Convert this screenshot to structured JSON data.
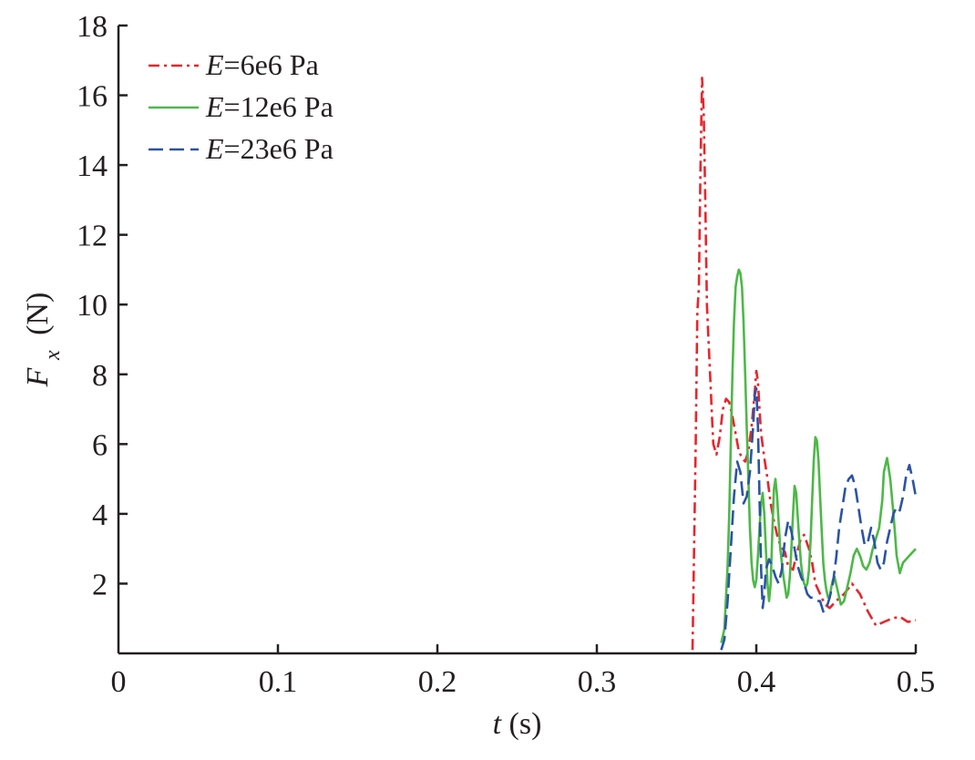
{
  "chart_data": {
    "type": "line",
    "title": "",
    "xlabel": {
      "var": "t",
      "unit": "(s)"
    },
    "ylabel": {
      "var": "F",
      "sub": "x",
      "unit": "(N)"
    },
    "xlim": [
      0,
      0.5
    ],
    "ylim": [
      0,
      18
    ],
    "x_ticks": [
      0,
      0.1,
      0.2,
      0.3,
      0.4,
      0.5
    ],
    "x_tick_labels": [
      "0",
      "0.1",
      "0.2",
      "0.3",
      "0.4",
      "0.5"
    ],
    "y_ticks": [
      2,
      4,
      6,
      8,
      10,
      12,
      14,
      16,
      18
    ],
    "y_tick_labels": [
      "2",
      "4",
      "6",
      "8",
      "10",
      "12",
      "14",
      "16",
      "18"
    ],
    "grid": false,
    "legend_position": "top-left",
    "series": [
      {
        "name": "E=6e6 Pa",
        "legend_var": "E",
        "legend_rest": "=6e6 Pa",
        "color": "#e8252b",
        "dash": "12,5,3,5",
        "x": [
          0.36,
          0.362,
          0.363,
          0.364,
          0.365,
          0.366,
          0.367,
          0.368,
          0.369,
          0.37,
          0.371,
          0.372,
          0.373,
          0.375,
          0.377,
          0.379,
          0.381,
          0.383,
          0.385,
          0.387,
          0.389,
          0.391,
          0.393,
          0.395,
          0.397,
          0.399,
          0.4,
          0.401,
          0.402,
          0.403,
          0.405,
          0.407,
          0.409,
          0.411,
          0.413,
          0.415,
          0.418,
          0.42,
          0.423,
          0.425,
          0.428,
          0.43,
          0.433,
          0.435,
          0.437,
          0.44,
          0.443,
          0.446,
          0.45,
          0.455,
          0.46,
          0.465,
          0.47,
          0.475,
          0.48,
          0.485,
          0.49,
          0.495,
          0.5
        ],
        "y": [
          0.1,
          6.0,
          9.8,
          10.5,
          14.0,
          16.5,
          15.5,
          13.0,
          10.0,
          9.0,
          8.0,
          7.0,
          6.0,
          5.7,
          6.2,
          7.0,
          7.3,
          7.2,
          6.8,
          6.3,
          5.8,
          5.6,
          5.5,
          5.8,
          6.5,
          7.5,
          8.1,
          7.8,
          7.0,
          6.3,
          5.6,
          5.0,
          4.3,
          3.8,
          3.4,
          3.1,
          2.9,
          2.5,
          2.4,
          2.8,
          3.3,
          3.4,
          3.0,
          2.6,
          2.0,
          1.7,
          1.4,
          1.3,
          1.5,
          1.7,
          2.0,
          1.7,
          1.2,
          0.8,
          0.9,
          1.0,
          1.05,
          0.9,
          0.95
        ]
      },
      {
        "name": "E=12e6 Pa",
        "legend_var": "E",
        "legend_rest": "=12e6 Pa",
        "color": "#4db848",
        "dash": "",
        "x": [
          0.378,
          0.38,
          0.382,
          0.383,
          0.384,
          0.385,
          0.386,
          0.387,
          0.388,
          0.389,
          0.39,
          0.391,
          0.392,
          0.393,
          0.394,
          0.395,
          0.396,
          0.397,
          0.398,
          0.399,
          0.4,
          0.401,
          0.402,
          0.403,
          0.404,
          0.405,
          0.406,
          0.407,
          0.408,
          0.409,
          0.41,
          0.411,
          0.412,
          0.413,
          0.415,
          0.417,
          0.419,
          0.42,
          0.421,
          0.422,
          0.423,
          0.424,
          0.425,
          0.426,
          0.427,
          0.428,
          0.429,
          0.43,
          0.431,
          0.432,
          0.433,
          0.434,
          0.435,
          0.436,
          0.437,
          0.438,
          0.439,
          0.44,
          0.441,
          0.442,
          0.443,
          0.444,
          0.445,
          0.446,
          0.447,
          0.448,
          0.449,
          0.45,
          0.451,
          0.452,
          0.453,
          0.455,
          0.457,
          0.459,
          0.461,
          0.463,
          0.465,
          0.467,
          0.469,
          0.471,
          0.473,
          0.475,
          0.477,
          0.479,
          0.48,
          0.482,
          0.484,
          0.486,
          0.487,
          0.488,
          0.49,
          0.492,
          0.494,
          0.496,
          0.498,
          0.5
        ],
        "y": [
          0.3,
          0.7,
          2.5,
          4.0,
          6.0,
          8.0,
          9.5,
          10.5,
          10.8,
          11.0,
          10.9,
          10.5,
          9.5,
          8.0,
          6.5,
          5.0,
          3.6,
          2.6,
          2.1,
          1.9,
          2.1,
          2.8,
          3.6,
          4.3,
          4.6,
          4.0,
          3.0,
          2.0,
          1.5,
          2.0,
          3.4,
          4.7,
          5.0,
          4.5,
          3.0,
          2.2,
          1.6,
          1.7,
          2.2,
          3.0,
          4.0,
          4.8,
          4.6,
          3.9,
          3.2,
          2.6,
          2.2,
          2.0,
          1.9,
          2.0,
          2.4,
          3.2,
          4.4,
          5.5,
          6.2,
          6.1,
          5.5,
          4.5,
          3.5,
          2.6,
          2.1,
          1.8,
          1.6,
          1.6,
          1.9,
          2.1,
          2.2,
          2.0,
          1.8,
          1.6,
          1.4,
          1.5,
          1.9,
          2.3,
          2.8,
          3.0,
          2.8,
          2.5,
          2.4,
          2.6,
          3.0,
          3.3,
          3.6,
          4.4,
          5.2,
          5.6,
          5.0,
          4.0,
          3.4,
          2.8,
          2.3,
          2.6,
          2.7,
          2.8,
          2.9,
          3.0
        ]
      },
      {
        "name": "E=23e6 Pa",
        "legend_var": "E",
        "legend_rest": "=23e6 Pa",
        "color": "#2b53a6",
        "dash": "16,7",
        "x": [
          0.378,
          0.38,
          0.382,
          0.384,
          0.386,
          0.388,
          0.39,
          0.392,
          0.394,
          0.396,
          0.398,
          0.399,
          0.4,
          0.401,
          0.402,
          0.403,
          0.404,
          0.405,
          0.406,
          0.408,
          0.41,
          0.412,
          0.414,
          0.416,
          0.418,
          0.42,
          0.422,
          0.424,
          0.426,
          0.428,
          0.43,
          0.432,
          0.434,
          0.436,
          0.438,
          0.44,
          0.442,
          0.444,
          0.446,
          0.448,
          0.45,
          0.452,
          0.454,
          0.456,
          0.458,
          0.46,
          0.462,
          0.464,
          0.466,
          0.468,
          0.47,
          0.472,
          0.474,
          0.476,
          0.478,
          0.48,
          0.482,
          0.484,
          0.486,
          0.488,
          0.49,
          0.492,
          0.494,
          0.496,
          0.498,
          0.5
        ],
        "y": [
          0.1,
          0.4,
          1.5,
          3.0,
          4.5,
          5.5,
          5.2,
          4.3,
          4.5,
          5.2,
          6.5,
          7.4,
          7.6,
          6.5,
          4.5,
          2.4,
          1.3,
          1.7,
          2.4,
          2.7,
          2.5,
          2.2,
          2.0,
          2.4,
          3.3,
          3.8,
          3.5,
          3.0,
          2.5,
          2.2,
          2.0,
          1.7,
          1.6,
          1.6,
          1.5,
          1.5,
          1.2,
          1.3,
          1.6,
          2.0,
          2.7,
          3.6,
          4.2,
          4.8,
          5.0,
          5.1,
          4.8,
          4.2,
          3.6,
          3.1,
          3.2,
          3.6,
          3.2,
          2.6,
          2.4,
          2.6,
          3.2,
          3.6,
          4.0,
          4.2,
          4.1,
          4.5,
          5.1,
          5.4,
          5.0,
          4.5
        ]
      }
    ]
  }
}
